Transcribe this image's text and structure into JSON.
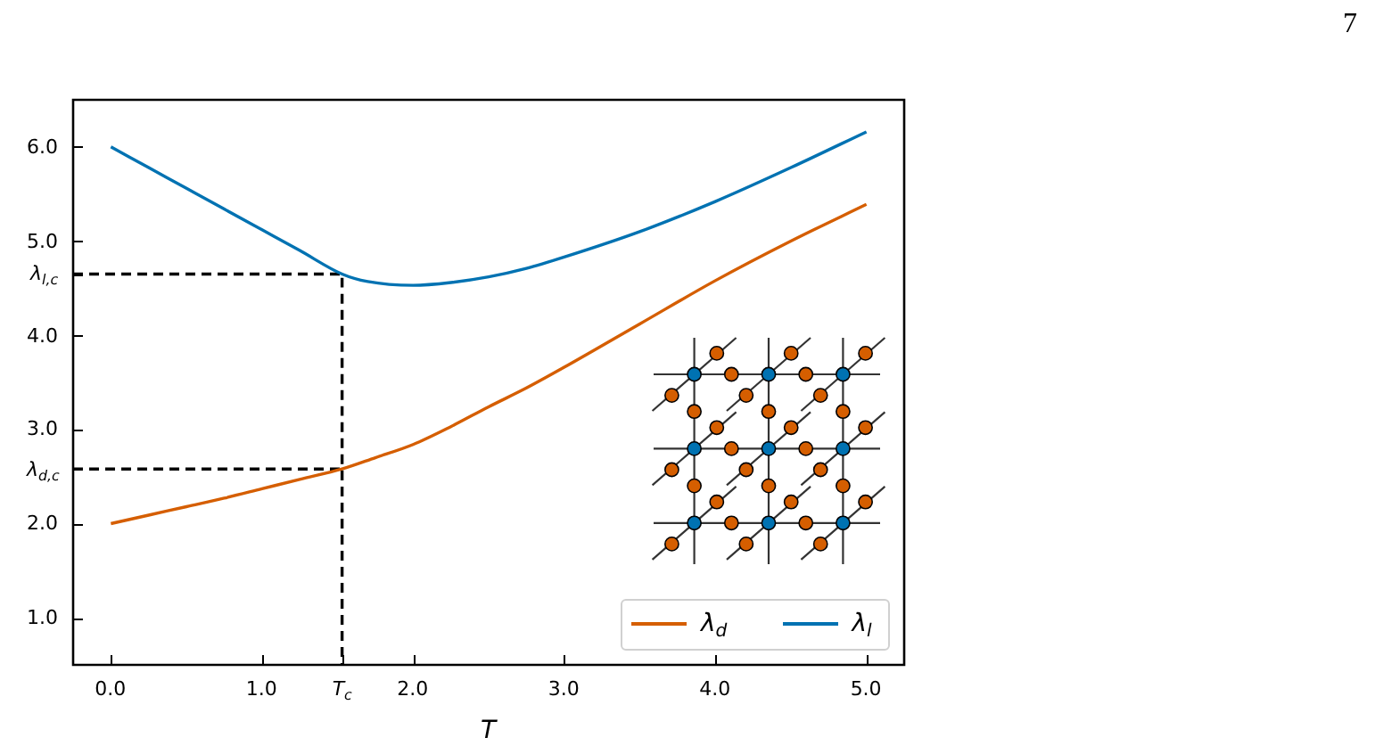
{
  "chart_data": {
    "type": "line",
    "xlabel": "T",
    "xlim": [
      -0.25,
      5.25
    ],
    "xticks": [
      {
        "value": 0,
        "label": "0.0"
      },
      {
        "value": 1,
        "label": "1.0"
      },
      {
        "value": 1.53,
        "label": "T$_{c}$"
      },
      {
        "value": 2,
        "label": "2.0"
      },
      {
        "value": 3,
        "label": "3.0"
      },
      {
        "value": 4,
        "label": "4.0"
      },
      {
        "value": 5,
        "label": "5.0"
      }
    ],
    "ylim": [
      0.5,
      6.5
    ],
    "yticks": [
      {
        "value": 1,
        "label": "1.0"
      },
      {
        "value": 2,
        "label": "2.0"
      },
      {
        "value": 2.58,
        "label": "λ$_{d,c}$"
      },
      {
        "value": 3,
        "label": "3.0"
      },
      {
        "value": 4,
        "label": "4.0"
      },
      {
        "value": 4.65,
        "label": "λ$_{l,c}$"
      },
      {
        "value": 5,
        "label": "5.0"
      },
      {
        "value": 6,
        "label": "6.0"
      }
    ],
    "series": [
      {
        "name": "λ$_{d}$",
        "color": "#d55e00",
        "x": [
          0,
          0.25,
          0.5,
          0.75,
          1,
          1.25,
          1.53,
          1.75,
          2,
          2.25,
          2.5,
          2.75,
          3,
          3.5,
          4,
          4.5,
          5
        ],
        "values": [
          2.0,
          2.09,
          2.18,
          2.27,
          2.37,
          2.47,
          2.58,
          2.7,
          2.84,
          3.03,
          3.24,
          3.44,
          3.66,
          4.12,
          4.58,
          5.0,
          5.39
        ]
      },
      {
        "name": "λ$_{l}$",
        "color": "#0072b2",
        "x": [
          0,
          0.25,
          0.5,
          0.75,
          1,
          1.25,
          1.53,
          1.7,
          2,
          2.25,
          2.5,
          2.75,
          3,
          3.5,
          4,
          4.5,
          5
        ],
        "values": [
          6.0,
          5.78,
          5.56,
          5.34,
          5.12,
          4.9,
          4.65,
          4.57,
          4.53,
          4.56,
          4.62,
          4.71,
          4.83,
          5.1,
          5.42,
          5.78,
          6.16
        ]
      },
      {
        "color": "#000000",
        "line_style": "dashed",
        "x": [
          -0.25,
          1.53,
          1.53
        ],
        "values": [
          4.65,
          4.65,
          0.5
        ]
      },
      {
        "color": "#000000",
        "line_style": "dashed",
        "x": [
          -0.25,
          1.53
        ],
        "values": [
          2.58,
          2.58
        ]
      }
    ],
    "legend": "bottom right",
    "marker": "none",
    "annotations": [
      "7"
    ]
  }
}
